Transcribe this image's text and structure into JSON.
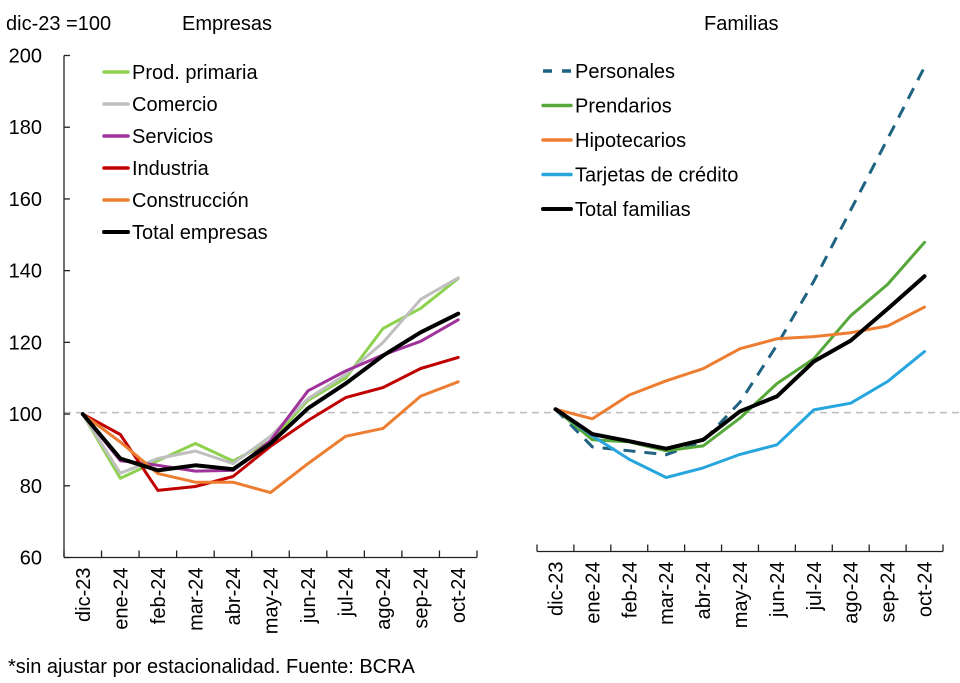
{
  "chart_data": [
    {
      "type": "line",
      "title": "Empresas",
      "ylabel": "dic-23 =100",
      "xlabel": "",
      "ylim": [
        60,
        200
      ],
      "yticks": [
        60,
        80,
        100,
        120,
        140,
        160,
        180,
        200
      ],
      "reference_line": 100,
      "legend_placement": "top-left",
      "categories": [
        "dic-23",
        "ene-24",
        "feb-24",
        "mar-24",
        "abr-24",
        "may-24",
        "jun-24",
        "jul-24",
        "ago-24",
        "sep-24",
        "oct-24"
      ],
      "series": [
        {
          "name": "Prod. primaria",
          "color": "#8DD14F",
          "dash": false,
          "values": [
            100,
            82.1,
            87.0,
            91.8,
            86.9,
            92.4,
            103.8,
            110.0,
            123.9,
            129.5,
            137.8
          ]
        },
        {
          "name": "Comercio",
          "color": "#BFBFBF",
          "dash": false,
          "values": [
            100,
            83.5,
            87.6,
            89.7,
            86.2,
            93.8,
            104.3,
            111.0,
            120.0,
            132.0,
            138.0
          ]
        },
        {
          "name": "Servicios",
          "color": "#A0339A",
          "dash": false,
          "values": [
            100,
            87.0,
            85.7,
            84.1,
            84.3,
            92.6,
            106.5,
            112.0,
            116.5,
            120.3,
            126.3
          ]
        },
        {
          "name": "Industria",
          "color": "#C00000",
          "dash": false,
          "values": [
            100,
            94.3,
            78.7,
            79.8,
            82.6,
            91.0,
            98.2,
            104.6,
            107.4,
            112.7,
            115.8
          ]
        },
        {
          "name": "Construcción",
          "color": "#ED7D31",
          "dash": false,
          "values": [
            100,
            92.2,
            83.4,
            81.0,
            81.0,
            78.1,
            86.2,
            93.8,
            96.0,
            105.0,
            109.0
          ]
        },
        {
          "name": "Total empresas",
          "color": "#000000",
          "dash": false,
          "values": [
            100,
            87.6,
            84.3,
            85.7,
            84.6,
            91.8,
            101.6,
            108.5,
            116.3,
            122.8,
            128.0
          ]
        }
      ]
    },
    {
      "type": "line",
      "title": "Familias",
      "ylabel": "",
      "xlabel": "",
      "ylim": [
        60,
        200
      ],
      "reference_line": 100,
      "legend_placement": "top-left",
      "categories": [
        "dic-23",
        "ene-24",
        "feb-24",
        "mar-24",
        "abr-24",
        "may-24",
        "jun-24",
        "jul-24",
        "ago-24",
        "sep-24",
        "oct-24"
      ],
      "series": [
        {
          "name": "Personales",
          "color": "#1F6282",
          "dash": true,
          "values": [
            100,
            89.4,
            88.3,
            87.2,
            91.0,
            102.0,
            118.0,
            136.0,
            156.0,
            176.0,
            196.2
          ]
        },
        {
          "name": "Prendarios",
          "color": "#57A83A",
          "dash": false,
          "values": [
            100,
            91.4,
            90.8,
            88.3,
            89.7,
            97.5,
            107.2,
            114.2,
            126.3,
            135.1,
            146.9
          ]
        },
        {
          "name": "Hipotecarios",
          "color": "#ED7D31",
          "dash": false,
          "values": [
            100,
            97.3,
            104.0,
            108.0,
            111.4,
            117.0,
            119.8,
            120.4,
            121.5,
            123.4,
            128.7
          ]
        },
        {
          "name": "Tarjetas de crédito",
          "color": "#27A6DE",
          "dash": false,
          "values": [
            100,
            92.5,
            85.9,
            80.8,
            83.5,
            87.3,
            90.0,
            99.8,
            101.7,
            107.8,
            116.2
          ]
        },
        {
          "name": "Total familias",
          "color": "#000000",
          "dash": false,
          "values": [
            100,
            93.0,
            91.0,
            88.9,
            91.4,
            99.4,
            103.6,
            113.4,
            119.3,
            128.2,
            137.4
          ]
        }
      ]
    }
  ],
  "footnote": "*sin ajustar por estacionalidad. Fuente: BCRA"
}
